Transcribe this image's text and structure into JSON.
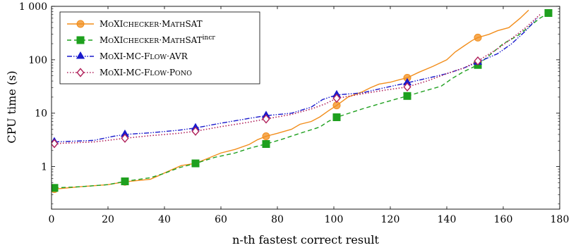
{
  "chart_data": {
    "type": "line",
    "title": "",
    "xlabel": "n-th fastest correct result",
    "ylabel": "CPU time (s)",
    "xlim": [
      0,
      180
    ],
    "ylim": [
      0.16,
      1000
    ],
    "yscale": "log",
    "x_ticks": [
      0,
      20,
      40,
      60,
      80,
      100,
      120,
      140,
      160,
      180
    ],
    "x_tick_labels": [
      "0",
      "20",
      "40",
      "60",
      "80",
      "100",
      "120",
      "140",
      "160",
      "180"
    ],
    "y_ticks": [
      1,
      10,
      100,
      1000
    ],
    "y_tick_labels": [
      "1",
      "10",
      "100",
      "1 000"
    ],
    "grid": false,
    "legend_position": "top-left",
    "series": [
      {
        "name": "MoXIchecker·MathSAT",
        "name_parts": [
          {
            "text": "M",
            "style": "normal"
          },
          {
            "text": "o",
            "style": "small-caps"
          },
          {
            "text": "XI",
            "style": "normal"
          },
          {
            "text": "checker",
            "style": "small-caps"
          },
          {
            "text": "·",
            "style": "normal"
          },
          {
            "text": "M",
            "style": "normal"
          },
          {
            "text": "ath",
            "style": "small-caps"
          },
          {
            "text": "SAT",
            "style": "normal"
          }
        ],
        "color": "#f28e1c",
        "dash": "solid",
        "marker": "circle",
        "x": [
          1,
          10,
          20,
          26,
          35,
          38,
          42,
          46,
          51,
          55,
          60,
          65,
          70,
          73,
          76,
          80,
          85,
          88,
          92,
          95,
          98,
          101,
          105,
          110,
          113,
          116,
          120,
          123,
          126,
          130,
          135,
          140,
          143,
          146,
          149,
          151,
          155,
          158,
          162,
          166,
          169
        ],
        "y": [
          0.38,
          0.42,
          0.46,
          0.52,
          0.58,
          0.68,
          0.85,
          1.05,
          1.15,
          1.4,
          1.8,
          2.1,
          2.6,
          3.2,
          3.7,
          4.2,
          5.0,
          6.2,
          7.0,
          8.5,
          11,
          14,
          20,
          25,
          30,
          35,
          38,
          42,
          46,
          58,
          75,
          100,
          140,
          180,
          230,
          260,
          300,
          350,
          400,
          600,
          850
        ],
        "marker_x": [
          1,
          26,
          51,
          76,
          101,
          126,
          151
        ],
        "marker_y": [
          0.38,
          0.52,
          1.15,
          3.7,
          14,
          46,
          260
        ]
      },
      {
        "name": "MoXIchecker·MathSATincr",
        "name_parts": [
          {
            "text": "M",
            "style": "normal"
          },
          {
            "text": "o",
            "style": "small-caps"
          },
          {
            "text": "XI",
            "style": "normal"
          },
          {
            "text": "checker",
            "style": "small-caps"
          },
          {
            "text": "·",
            "style": "normal"
          },
          {
            "text": "M",
            "style": "normal"
          },
          {
            "text": "ath",
            "style": "small-caps"
          },
          {
            "text": "SAT",
            "style": "normal"
          },
          {
            "text": "incr",
            "style": "superscript"
          }
        ],
        "color": "#1ea01e",
        "dash": "6,4",
        "marker": "square",
        "x": [
          1,
          10,
          20,
          26,
          35,
          40,
          45,
          51,
          58,
          65,
          70,
          76,
          82,
          88,
          95,
          98,
          101,
          110,
          118,
          126,
          132,
          138,
          142,
          146,
          151,
          155,
          160,
          165,
          170,
          173,
          176
        ],
        "y": [
          0.4,
          0.42,
          0.46,
          0.53,
          0.62,
          0.75,
          0.95,
          1.15,
          1.5,
          1.8,
          2.2,
          2.65,
          3.3,
          4.2,
          5.5,
          7.0,
          8.4,
          12,
          16,
          21,
          26,
          32,
          45,
          60,
          80,
          120,
          200,
          280,
          450,
          600,
          750
        ],
        "marker_x": [
          1,
          26,
          51,
          76,
          101,
          126,
          151,
          176
        ],
        "marker_y": [
          0.4,
          0.53,
          1.15,
          2.65,
          8.4,
          21,
          80,
          750
        ]
      },
      {
        "name": "MoXI-MC-Flow·AVR",
        "name_parts": [
          {
            "text": "M",
            "style": "normal"
          },
          {
            "text": "o",
            "style": "small-caps"
          },
          {
            "text": "XI-MC-F",
            "style": "normal"
          },
          {
            "text": "low",
            "style": "small-caps"
          },
          {
            "text": "·AVR",
            "style": "normal"
          }
        ],
        "color": "#1a1acc",
        "dash": "7,2,1.5,2,1.5,2",
        "marker": "triangle",
        "x": [
          1,
          15,
          22,
          26,
          35,
          45,
          51,
          60,
          70,
          76,
          85,
          92,
          96,
          101,
          110,
          118,
          126,
          133,
          140,
          146,
          151,
          158,
          163,
          168,
          172
        ],
        "y": [
          2.9,
          3.1,
          3.7,
          4.0,
          4.3,
          4.8,
          5.3,
          6.5,
          8.0,
          9.0,
          10,
          13,
          18,
          22,
          24,
          30,
          37,
          45,
          55,
          70,
          90,
          130,
          200,
          350,
          600
        ],
        "marker_x": [
          1,
          26,
          51,
          76,
          101,
          126,
          151
        ],
        "marker_y": [
          2.9,
          4.0,
          5.3,
          9.0,
          22,
          37,
          90
        ]
      },
      {
        "name": "MoXI-MC-Flow·Pono",
        "name_parts": [
          {
            "text": "M",
            "style": "normal"
          },
          {
            "text": "o",
            "style": "small-caps"
          },
          {
            "text": "XI-MC-F",
            "style": "normal"
          },
          {
            "text": "low",
            "style": "small-caps"
          },
          {
            "text": "·P",
            "style": "normal"
          },
          {
            "text": "ono",
            "style": "small-caps"
          }
        ],
        "color": "#b0205a",
        "dash": "1.5,2.5",
        "marker": "diamond",
        "x": [
          1,
          15,
          22,
          26,
          35,
          45,
          51,
          60,
          70,
          76,
          85,
          92,
          97,
          101,
          110,
          118,
          126,
          133,
          140,
          146,
          151,
          158,
          163,
          168,
          173
        ],
        "y": [
          2.7,
          2.9,
          3.2,
          3.4,
          3.8,
          4.2,
          4.6,
          5.6,
          6.8,
          7.8,
          9.5,
          12,
          15,
          19,
          23,
          27,
          31,
          40,
          55,
          70,
          95,
          160,
          250,
          400,
          700
        ],
        "marker_x": [
          1,
          26,
          51,
          76,
          101,
          126,
          151
        ],
        "marker_y": [
          2.7,
          3.4,
          4.6,
          7.8,
          19,
          31,
          95
        ]
      }
    ]
  }
}
